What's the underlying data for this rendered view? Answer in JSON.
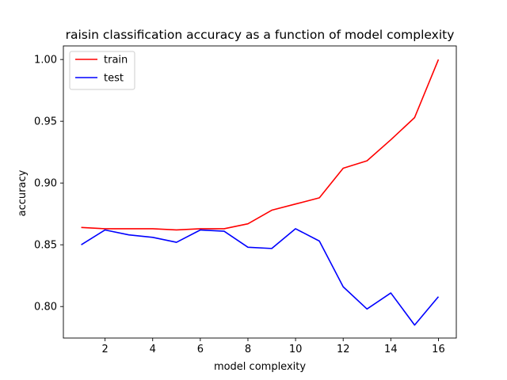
{
  "chart_data": {
    "type": "line",
    "title": "raisin classification accuracy as a function of model complexity",
    "xlabel": "model complexity",
    "ylabel": "accuracy",
    "xlim": [
      0.25,
      16.75
    ],
    "ylim": [
      0.7745,
      1.011
    ],
    "xticks": [
      2,
      4,
      6,
      8,
      10,
      12,
      14,
      16
    ],
    "yticks": [
      0.8,
      0.85,
      0.9,
      0.95,
      1.0
    ],
    "xtick_labels": [
      "2",
      "4",
      "6",
      "8",
      "10",
      "12",
      "14",
      "16"
    ],
    "ytick_labels": [
      "0.80",
      "0.85",
      "0.90",
      "0.95",
      "1.00"
    ],
    "grid": false,
    "legend_position": "upper-left",
    "x": [
      1,
      2,
      3,
      4,
      5,
      6,
      7,
      8,
      9,
      10,
      11,
      12,
      13,
      14,
      15,
      16
    ],
    "series": [
      {
        "name": "train",
        "color": "#ff0000",
        "values": [
          0.864,
          0.863,
          0.863,
          0.863,
          0.862,
          0.863,
          0.863,
          0.867,
          0.878,
          0.883,
          0.888,
          0.912,
          0.918,
          0.935,
          0.953,
          1.0
        ]
      },
      {
        "name": "test",
        "color": "#0000ff",
        "values": [
          0.85,
          0.862,
          0.858,
          0.856,
          0.852,
          0.862,
          0.861,
          0.848,
          0.847,
          0.863,
          0.853,
          0.816,
          0.798,
          0.811,
          0.785,
          0.808
        ]
      }
    ]
  }
}
